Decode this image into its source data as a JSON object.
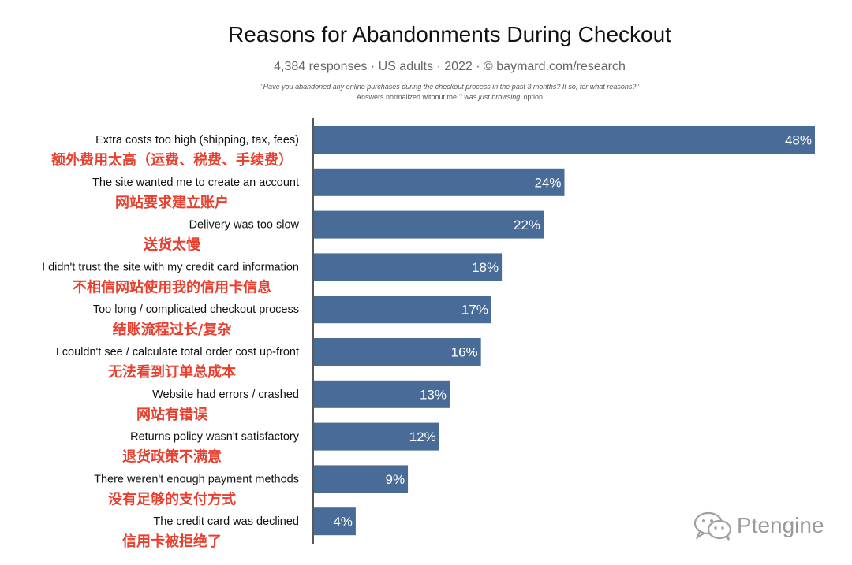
{
  "chart_data": {
    "type": "bar",
    "orientation": "horizontal",
    "title": "Reasons for Abandonments During Checkout",
    "subtitle": "4,384 responses  ·  US adults  ·  2022  ·  ©  baymard.com/research",
    "question": "\"Have you abandoned any online purchases during the checkout process in the past 3 months? If so, for what reasons?\"",
    "note_prefix": "Answers normalized without the ",
    "note_emphasis": "'I was just browsing'",
    "note_suffix": " option",
    "categories": [
      "Extra costs too high (shipping, tax, fees)",
      "The site wanted me to create an account",
      "Delivery was too slow",
      "I didn't trust the site with my credit card information",
      "Too long / complicated checkout process",
      "I couldn't see / calculate total order cost up-front",
      "Website had errors / crashed",
      "Returns policy wasn't satisfactory",
      "There weren't enough payment methods",
      "The credit card was declined"
    ],
    "translations": [
      "额外费用太高（运费、税费、手续费）",
      "网站要求建立账户",
      "送货太慢",
      "不相信网站使用我的信用卡信息",
      "结账流程过长/复杂",
      "无法看到订单总成本",
      "网站有错误",
      "退货政策不满意",
      "没有足够的支付方式",
      "信用卡被拒绝了"
    ],
    "values": [
      48,
      24,
      22,
      18,
      17,
      16,
      13,
      12,
      9,
      4
    ],
    "value_labels": [
      "48%",
      "24%",
      "22%",
      "18%",
      "17%",
      "16%",
      "13%",
      "12%",
      "9%",
      "4%"
    ],
    "xlim": [
      0,
      48
    ],
    "grid": false,
    "legend": "none",
    "bar_color": "#486b98",
    "translation_color": "#e8402f"
  },
  "watermark": {
    "text": "Ptengine",
    "icon": "wechat-icon"
  }
}
